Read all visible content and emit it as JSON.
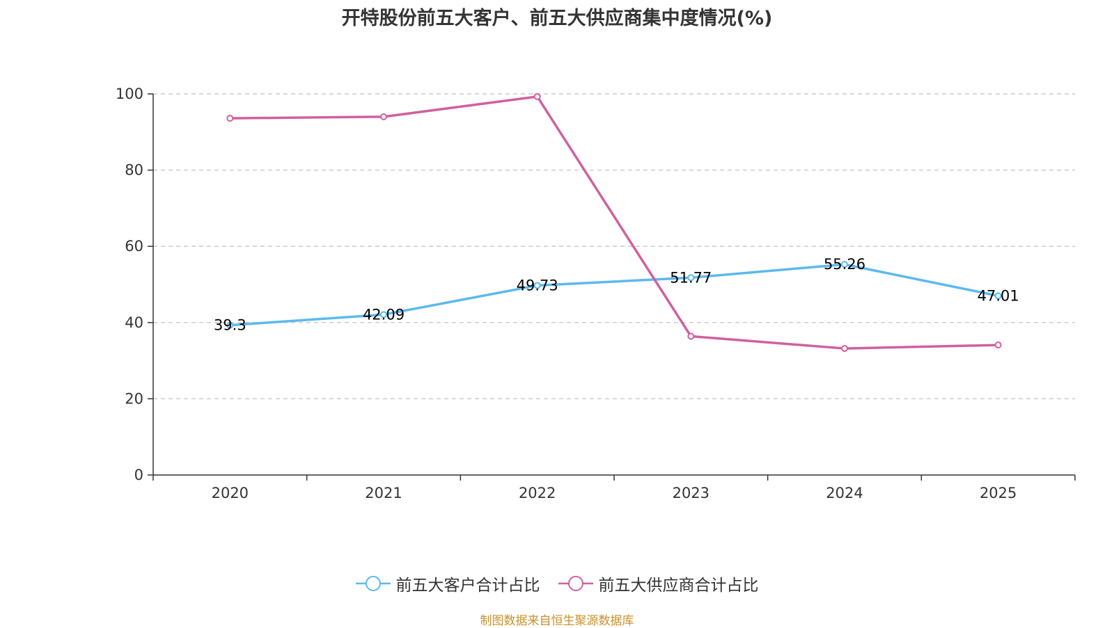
{
  "title": "开特股份前五大客户、前五大供应商集中度情况(%)",
  "source_note": "制图数据来自恒生聚源数据库",
  "legend": {
    "customers": "前五大客户合计占比",
    "suppliers": "前五大供应商合计占比"
  },
  "colors": {
    "customers": "#5bb9ee",
    "suppliers": "#d0609f",
    "grid": "#cccccc",
    "axis": "#333333",
    "source": "#c8922a"
  },
  "chart_data": {
    "type": "line",
    "title": "开特股份前五大客户、前五大供应商集中度情况(%)",
    "categories": [
      "2020",
      "2021",
      "2022",
      "2023",
      "2024",
      "2025"
    ],
    "y_ticks": [
      "0",
      "20",
      "40",
      "60",
      "80",
      "100"
    ],
    "ylim": [
      0,
      100
    ],
    "xlabel": "",
    "ylabel": "",
    "grid": true,
    "legend_position": "bottom",
    "series": [
      {
        "name": "前五大客户合计占比",
        "values": [
          39.3,
          42.09,
          49.73,
          51.77,
          55.26,
          47.01
        ],
        "labels": [
          "39.3",
          "42.09",
          "49.73",
          "51.77",
          "55.26",
          "47.01"
        ],
        "show_labels": true
      },
      {
        "name": "前五大供应商合计占比",
        "values": [
          93.6,
          94.0,
          99.3,
          36.4,
          33.2,
          34.1
        ],
        "show_labels": false
      }
    ]
  }
}
